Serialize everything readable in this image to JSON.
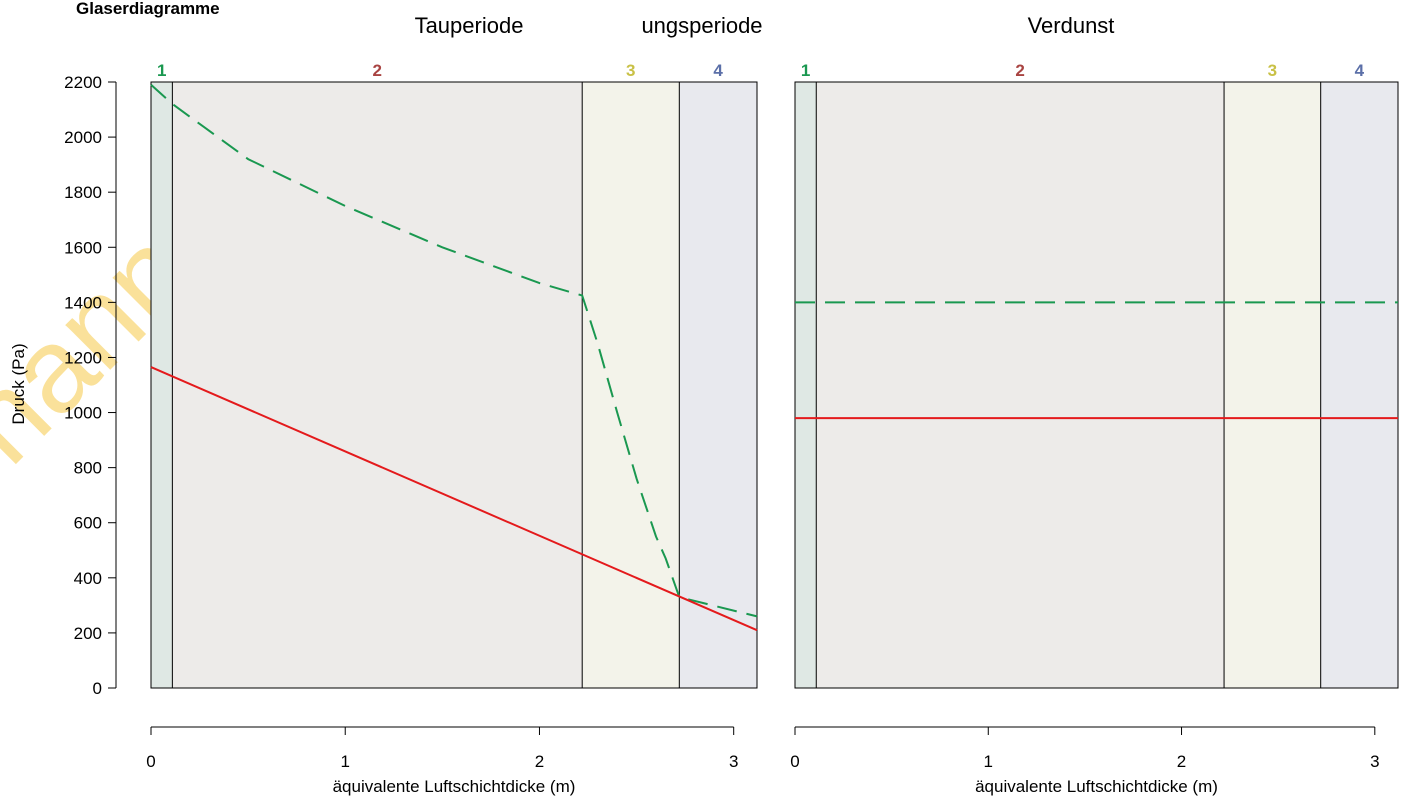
{
  "figure_title": "Glaserdiagramme",
  "watermark_text": "hanno fo",
  "y_axis_label": "Druck (Pa)",
  "chart_data": [
    {
      "type": "line",
      "title": "Tauperiode ungsperiode",
      "xlabel": "äquivalente Luftschichtdicke (m)",
      "ylabel": "Druck (Pa)",
      "xlim": [
        0,
        3.12
      ],
      "ylim": [
        0,
        2200
      ],
      "xticks": [
        0,
        1,
        2,
        3
      ],
      "yticks": [
        0,
        200,
        400,
        600,
        800,
        1000,
        1200,
        1400,
        1600,
        1800,
        2000,
        2200
      ],
      "grid": false,
      "layers": [
        {
          "label": "1",
          "from": 0,
          "to": 0.11,
          "fill": "#dfe8e4",
          "label_color": "#1a9850"
        },
        {
          "label": "2",
          "from": 0.11,
          "to": 2.22,
          "fill": "#edebe9",
          "label_color": "#a94442"
        },
        {
          "label": "3",
          "from": 2.22,
          "to": 2.72,
          "fill": "#f3f3ea",
          "label_color": "#c9c146"
        },
        {
          "label": "4",
          "from": 2.72,
          "to": 3.12,
          "fill": "#e8e9ee",
          "label_color": "#5b6fa8"
        }
      ],
      "series": [
        {
          "style": "dashed",
          "color": "#1a9850",
          "points": [
            [
              0,
              2190
            ],
            [
              0.11,
              2120
            ],
            [
              0.5,
              1920
            ],
            [
              1.0,
              1750
            ],
            [
              1.5,
              1600
            ],
            [
              2.0,
              1470
            ],
            [
              2.22,
              1425
            ],
            [
              2.3,
              1250
            ],
            [
              2.4,
              1000
            ],
            [
              2.5,
              760
            ],
            [
              2.6,
              550
            ],
            [
              2.65,
              470
            ],
            [
              2.72,
              330
            ],
            [
              3.12,
              260
            ]
          ]
        },
        {
          "style": "solid",
          "color": "#e41a1c",
          "points": [
            [
              0,
              1165
            ],
            [
              3.12,
              210
            ]
          ]
        }
      ]
    },
    {
      "type": "line",
      "title": "Verdunst",
      "xlabel": "äquivalente Luftschichtdicke (m)",
      "xlim": [
        0,
        3.12
      ],
      "ylim": [
        0,
        2200
      ],
      "xticks": [
        0,
        1,
        2,
        3
      ],
      "grid": false,
      "layers": [
        {
          "label": "1",
          "from": 0,
          "to": 0.11,
          "fill": "#dfe8e4",
          "label_color": "#1a9850"
        },
        {
          "label": "2",
          "from": 0.11,
          "to": 2.22,
          "fill": "#edebe9",
          "label_color": "#a94442"
        },
        {
          "label": "3",
          "from": 2.22,
          "to": 2.72,
          "fill": "#f3f3ea",
          "label_color": "#c9c146"
        },
        {
          "label": "4",
          "from": 2.72,
          "to": 3.12,
          "fill": "#e8e9ee",
          "label_color": "#5b6fa8"
        }
      ],
      "series": [
        {
          "style": "dashed",
          "color": "#1a9850",
          "points": [
            [
              0,
              1400
            ],
            [
              3.12,
              1400
            ]
          ]
        },
        {
          "style": "solid",
          "color": "#e41a1c",
          "points": [
            [
              0,
              980
            ],
            [
              3.12,
              980
            ]
          ]
        }
      ]
    }
  ]
}
